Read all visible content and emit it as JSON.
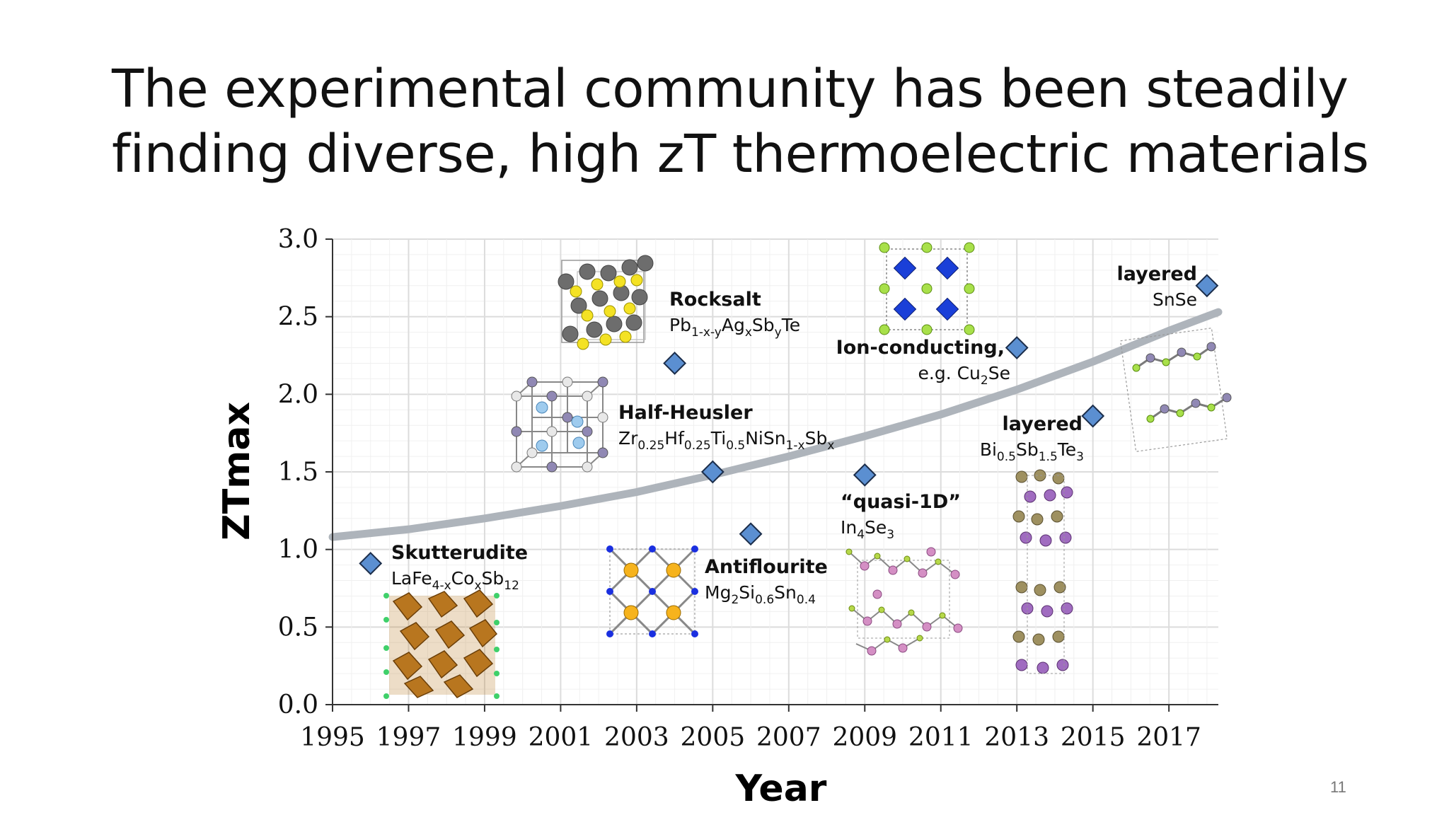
{
  "slide": {
    "title_line1": "The experimental community has been steadily",
    "title_line2": "finding diverse, high zT thermoelectric materials",
    "page_number": "11"
  },
  "chart_data": {
    "type": "scatter",
    "xlabel": "Year",
    "ylabel": "ZTmax",
    "xlim": [
      1995,
      2018.3
    ],
    "ylim": [
      0,
      3.0
    ],
    "x_ticks": [
      "1995",
      "1997",
      "1999",
      "2001",
      "2003",
      "2005",
      "2007",
      "2009",
      "2011",
      "2013",
      "2015",
      "2017"
    ],
    "y_ticks": [
      "0.0",
      "0.5",
      "1.0",
      "1.5",
      "2.0",
      "2.5",
      "3.0"
    ],
    "grid": true,
    "marker_color": "#5b8fd1",
    "trend_color": "#aeb4bb",
    "points": [
      {
        "x": 1996.0,
        "y": 0.91,
        "name": "Skutterudite",
        "formula": "LaFe4-xCoxSb12"
      },
      {
        "x": 2004.0,
        "y": 2.2,
        "name": "Rocksalt",
        "formula": "Pb1-x-yAgxSbyTe"
      },
      {
        "x": 2005.0,
        "y": 1.5,
        "name": "Half-Heusler",
        "formula": "Zr0.25Hf0.25Ti0.5NiSn1-xSbx"
      },
      {
        "x": 2006.0,
        "y": 1.1,
        "name": "Antiflourite",
        "formula": "Mg2Si0.6Sn0.4"
      },
      {
        "x": 2009.0,
        "y": 1.48,
        "name": "“quasi-1D”",
        "formula": "In4Se3"
      },
      {
        "x": 2013.0,
        "y": 2.3,
        "name": "Ion-conducting,",
        "formula": "e.g. Cu2Se"
      },
      {
        "x": 2015.0,
        "y": 1.86,
        "name": "layered",
        "formula": "Bi0.5Sb1.5Te3"
      },
      {
        "x": 2018.0,
        "y": 2.7,
        "name": "layered",
        "formula": "SnSe"
      }
    ],
    "trend": {
      "x": [
        1995,
        1997,
        1999,
        2001,
        2003,
        2005,
        2007,
        2009,
        2011,
        2013,
        2015,
        2017,
        2018.3
      ],
      "y": [
        1.08,
        1.13,
        1.2,
        1.28,
        1.37,
        1.48,
        1.6,
        1.73,
        1.87,
        2.03,
        2.21,
        2.41,
        2.53
      ]
    }
  }
}
